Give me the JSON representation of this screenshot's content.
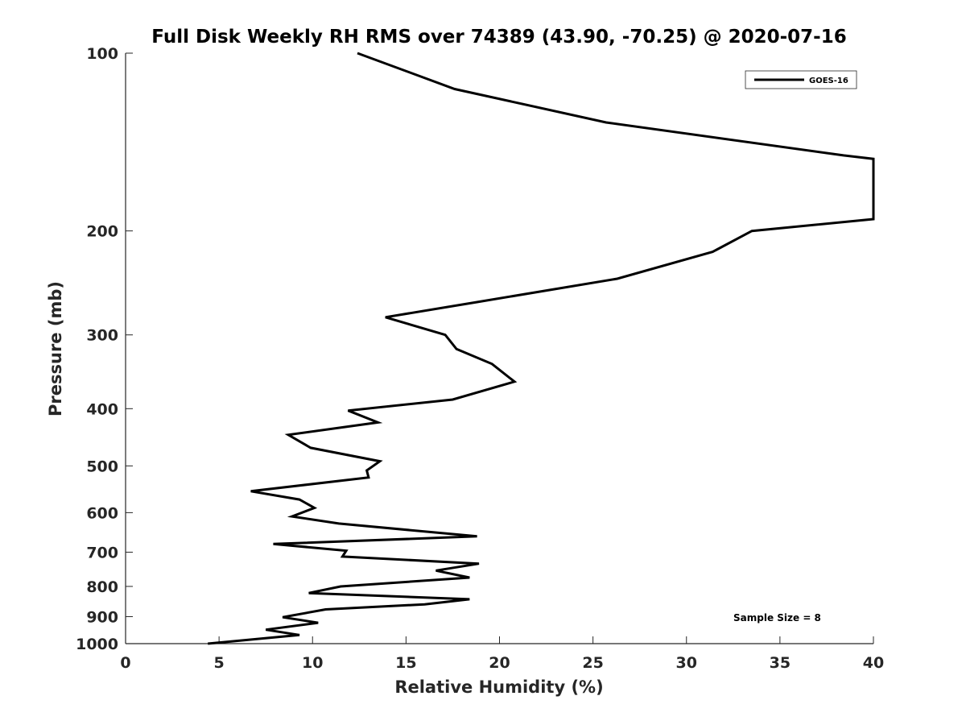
{
  "chart_data": {
    "type": "line",
    "title": "Full Disk Weekly RH RMS over 74389 (43.90, -70.25) @ 2020-07-16",
    "xlabel": "Relative Humidity (%)",
    "ylabel": "Pressure (mb)",
    "xlim": [
      0,
      40
    ],
    "ylim": [
      100,
      1000
    ],
    "y_scale": "log",
    "y_reversed": true,
    "grid": false,
    "legend_position": "top-right",
    "x_ticks": [
      "0",
      "5",
      "10",
      "15",
      "20",
      "25",
      "30",
      "35",
      "40"
    ],
    "y_ticks": [
      "100",
      "200",
      "300",
      "400",
      "500",
      "600",
      "700",
      "800",
      "900",
      "1000"
    ],
    "series": [
      {
        "name": "GOES-16",
        "color": "#000000",
        "x": [
          12.4,
          17.6,
          25.7,
          38.4,
          40.0,
          40.0,
          33.5,
          31.4,
          26.3,
          18.8,
          13.9,
          17.1,
          17.7,
          19.6,
          20.8,
          17.5,
          11.9,
          13.5,
          8.7,
          9.9,
          13.6,
          12.9,
          13.0,
          6.7,
          9.3,
          10.1,
          8.9,
          11.4,
          18.8,
          7.9,
          11.8,
          11.6,
          18.9,
          16.6,
          18.4,
          11.5,
          9.8,
          18.4,
          16.0,
          10.7,
          8.4,
          10.3,
          7.5,
          9.3,
          4.4
        ],
        "y": [
          100,
          115,
          131,
          149,
          151,
          191,
          200,
          217,
          241,
          264,
          280,
          300,
          317,
          336,
          360,
          386,
          403,
          422,
          443,
          466,
          491,
          509,
          523,
          552,
          570,
          589,
          609,
          626,
          658,
          678,
          696,
          712,
          732,
          752,
          773,
          800,
          821,
          841,
          858,
          875,
          902,
          922,
          947,
          967,
          1000
        ]
      }
    ],
    "annotations": [
      "Sample Size = 8"
    ]
  }
}
